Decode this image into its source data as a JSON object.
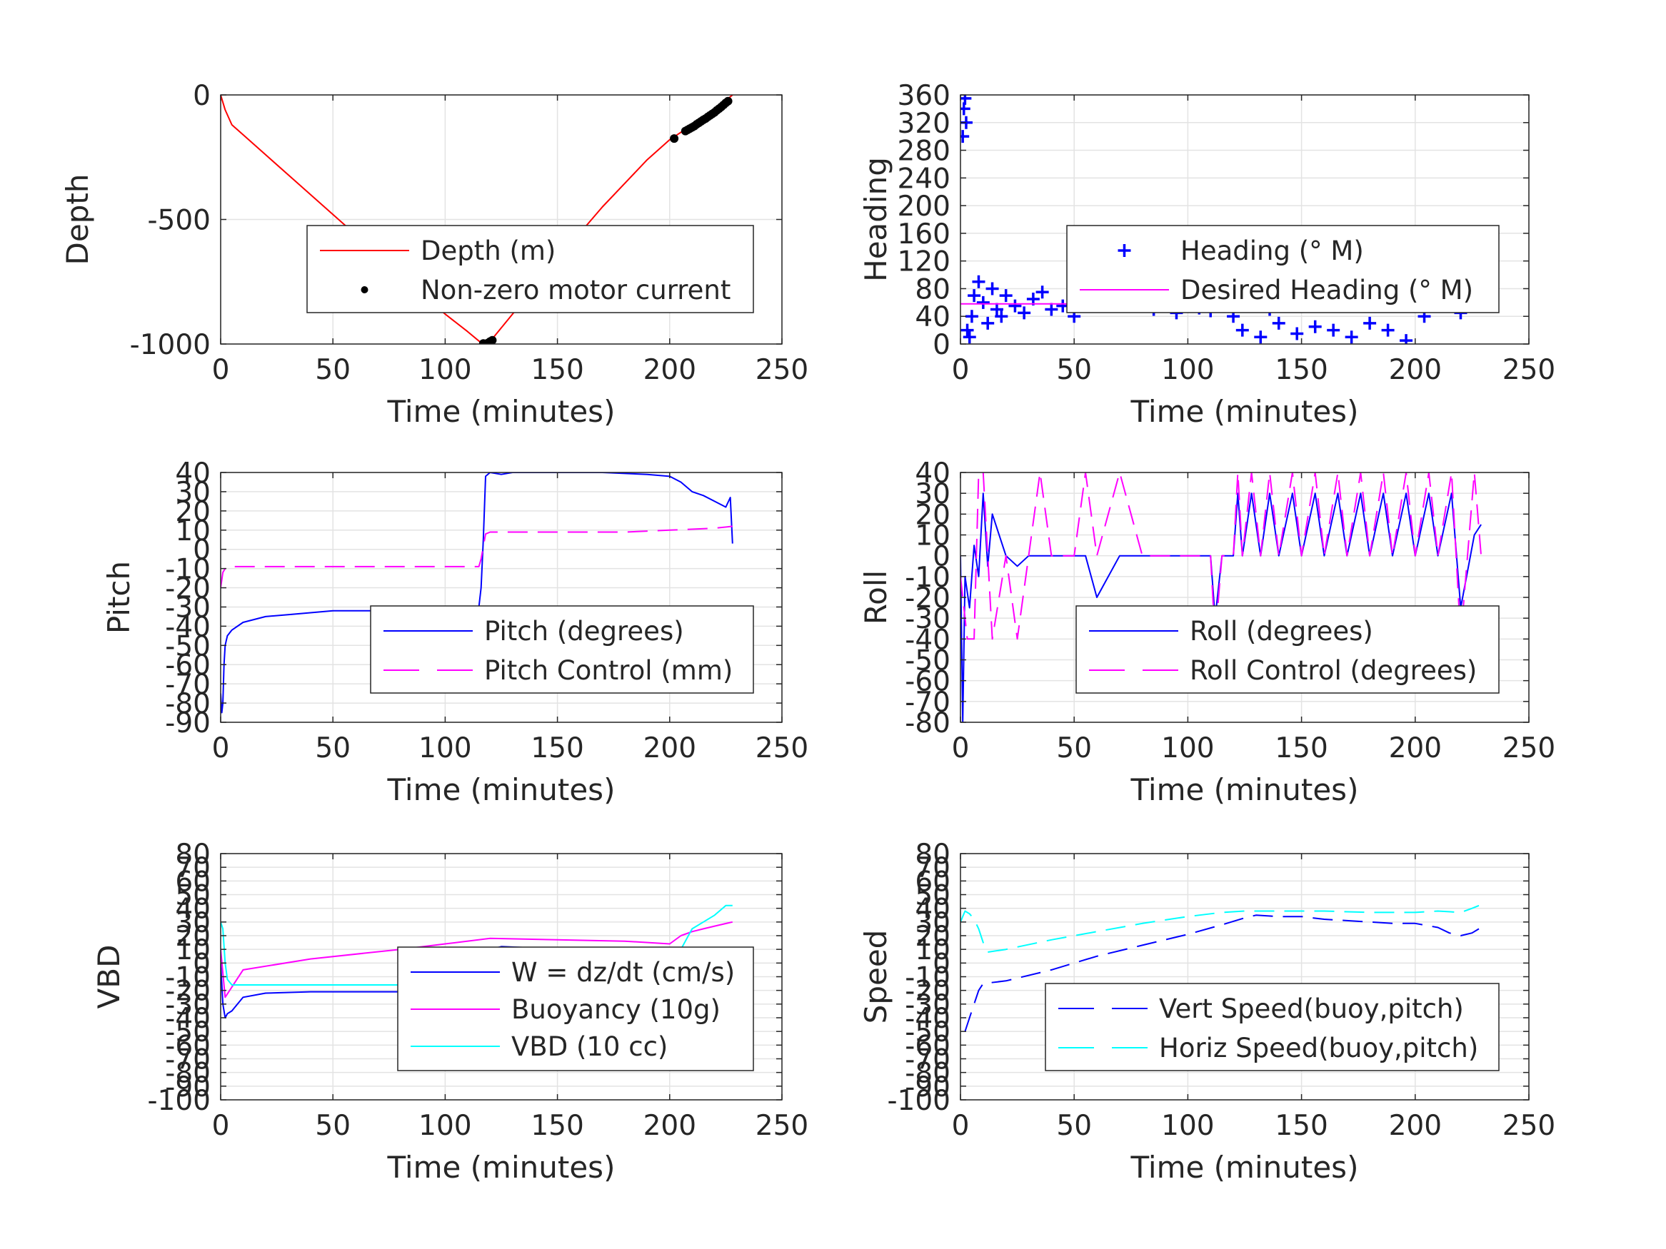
{
  "colors": {
    "depth": "#ff0000",
    "motor": "#000000",
    "blue": "#0000ff",
    "magenta": "#ff00ff",
    "cyan": "#00ffff",
    "grid": "#e3e3e3",
    "axis": "#262626"
  },
  "chart_data": [
    {
      "type": "line",
      "id": "depth",
      "ylabel": "Depth",
      "xlabel": "Time (minutes)",
      "xlim": [
        0,
        250
      ],
      "ylim": [
        -1000,
        0
      ],
      "xticks": [
        0,
        50,
        100,
        150,
        200,
        250
      ],
      "yticks": [
        -1000,
        -500,
        0
      ],
      "ytick_labels": [
        "-1000",
        "-500",
        "0"
      ],
      "grid": true,
      "legend_position": "center-right",
      "series": [
        {
          "name": "Depth (m)",
          "style": "solid",
          "color": "#ff0000",
          "x": [
            0,
            2,
            5,
            10,
            20,
            40,
            60,
            80,
            100,
            110,
            116,
            118,
            120,
            130,
            150,
            170,
            190,
            200,
            210,
            220,
            228
          ],
          "y": [
            0,
            -60,
            -120,
            -160,
            -240,
            -400,
            -560,
            -720,
            -880,
            -950,
            -995,
            -1000,
            -990,
            -880,
            -660,
            -450,
            -260,
            -180,
            -120,
            -60,
            0
          ]
        },
        {
          "name": "Non-zero motor current",
          "style": "points",
          "color": "#000000",
          "x": [
            117,
            118,
            119,
            120,
            121,
            202,
            207,
            208,
            209,
            210,
            211,
            212,
            213,
            214,
            215,
            216,
            217,
            218,
            219,
            220,
            221,
            222,
            223,
            224,
            225,
            226
          ],
          "y": [
            -998,
            -1000,
            -996,
            -990,
            -985,
            -175,
            -145,
            -140,
            -135,
            -130,
            -125,
            -118,
            -112,
            -106,
            -100,
            -95,
            -88,
            -82,
            -76,
            -70,
            -62,
            -55,
            -48,
            -40,
            -32,
            -25
          ]
        }
      ]
    },
    {
      "type": "scatter",
      "id": "heading",
      "ylabel": "Heading",
      "xlabel": "Time (minutes)",
      "xlim": [
        0,
        250
      ],
      "ylim": [
        0,
        360
      ],
      "xticks": [
        0,
        50,
        100,
        150,
        200,
        250
      ],
      "yticks": [
        0,
        40,
        80,
        120,
        160,
        200,
        240,
        280,
        320,
        360
      ],
      "ytick_labels": [
        "0",
        "40",
        "80",
        "120",
        "160",
        "200",
        "240",
        "280",
        "320",
        "360"
      ],
      "grid": true,
      "legend_position": "center-right",
      "series": [
        {
          "name": "Heading (° M)",
          "style": "plus",
          "color": "#0000ff",
          "x": [
            1,
            1.5,
            2,
            2.5,
            3,
            4,
            5,
            6,
            8,
            10,
            12,
            14,
            16,
            18,
            20,
            24,
            28,
            32,
            36,
            40,
            45,
            50,
            55,
            60,
            65,
            70,
            75,
            80,
            85,
            90,
            95,
            100,
            105,
            110,
            115,
            120,
            124,
            128,
            132,
            136,
            140,
            144,
            148,
            152,
            156,
            160,
            164,
            168,
            172,
            176,
            180,
            184,
            188,
            192,
            196,
            200,
            204,
            208,
            212,
            216,
            220,
            224,
            228
          ],
          "y": [
            300,
            340,
            355,
            320,
            20,
            10,
            40,
            70,
            90,
            60,
            30,
            80,
            50,
            40,
            70,
            55,
            45,
            65,
            75,
            50,
            55,
            40,
            60,
            70,
            55,
            75,
            60,
            68,
            50,
            60,
            45,
            58,
            52,
            48,
            55,
            40,
            20,
            70,
            10,
            50,
            30,
            80,
            15,
            60,
            25,
            75,
            20,
            55,
            10,
            65,
            30,
            80,
            20,
            60,
            5,
            90,
            40,
            110,
            70,
            100,
            45,
            80,
            60
          ]
        },
        {
          "name": "Desired Heading (° M)",
          "style": "solid",
          "color": "#ff00ff",
          "x": [
            0,
            50,
            55,
            60,
            90,
            95,
            110,
            120,
            230
          ],
          "y": [
            58,
            58,
            62,
            68,
            68,
            58,
            58,
            55,
            55
          ]
        }
      ]
    },
    {
      "type": "line",
      "id": "pitch",
      "ylabel": "Pitch",
      "xlabel": "Time (minutes)",
      "xlim": [
        0,
        250
      ],
      "ylim": [
        -90,
        40
      ],
      "xticks": [
        0,
        50,
        100,
        150,
        200,
        250
      ],
      "yticks": [
        -90,
        -80,
        -70,
        -60,
        -50,
        -40,
        -30,
        -20,
        -10,
        0,
        10,
        20,
        30,
        40
      ],
      "ytick_labels": [
        "-90",
        "-80",
        "-70",
        "-60",
        "-50",
        "-40",
        "-30",
        "-20",
        "-10",
        "0",
        "10",
        "20",
        "30",
        "40"
      ],
      "grid": true,
      "legend_position": "lower-right",
      "series": [
        {
          "name": "Pitch (degrees)",
          "style": "solid",
          "color": "#0000ff",
          "x": [
            0,
            0.5,
            1,
            1.5,
            2,
            3,
            5,
            10,
            20,
            30,
            50,
            70,
            90,
            110,
            115,
            116,
            117,
            118,
            120,
            125,
            130,
            150,
            170,
            190,
            200,
            205,
            210,
            215,
            220,
            225,
            227,
            228
          ],
          "y": [
            -75,
            -85,
            -80,
            -60,
            -50,
            -45,
            -42,
            -38,
            -35,
            -34,
            -32,
            -32,
            -31,
            -30,
            -30,
            -20,
            5,
            38,
            40,
            39,
            40,
            40,
            40,
            39,
            38,
            35,
            30,
            28,
            25,
            22,
            27,
            3
          ]
        },
        {
          "name": "Pitch Control (mm)",
          "style": "dashed",
          "color": "#ff00ff",
          "x": [
            0,
            1,
            2,
            3,
            5,
            50,
            100,
            115,
            116,
            118,
            120,
            150,
            180,
            200,
            220,
            228
          ],
          "y": [
            -20,
            -12,
            -10,
            -10,
            -9,
            -9,
            -9,
            -9,
            -5,
            8,
            9,
            9,
            9,
            10,
            11,
            12
          ]
        }
      ]
    },
    {
      "type": "line",
      "id": "roll",
      "ylabel": "Roll",
      "xlabel": "Time (minutes)",
      "xlim": [
        0,
        250
      ],
      "ylim": [
        -80,
        40
      ],
      "xticks": [
        0,
        50,
        100,
        150,
        200,
        250
      ],
      "yticks": [
        -80,
        -70,
        -60,
        -50,
        -40,
        -30,
        -20,
        -10,
        0,
        10,
        20,
        30,
        40
      ],
      "ytick_labels": [
        "-80",
        "-70",
        "-60",
        "-50",
        "-40",
        "-30",
        "-20",
        "-10",
        "0",
        "10",
        "20",
        "30",
        "40"
      ],
      "grid": true,
      "legend_position": "lower-right",
      "series": [
        {
          "name": "Roll (degrees)",
          "style": "solid",
          "color": "#0000ff",
          "x": [
            0,
            1,
            2,
            4,
            6,
            8,
            10,
            12,
            14,
            20,
            25,
            30,
            35,
            40,
            50,
            55,
            60,
            70,
            80,
            90,
            100,
            110,
            112,
            115,
            120,
            122,
            124,
            128,
            132,
            136,
            140,
            146,
            150,
            156,
            160,
            166,
            170,
            176,
            180,
            186,
            190,
            196,
            200,
            206,
            210,
            216,
            220,
            226,
            229
          ],
          "y": [
            0,
            -80,
            -10,
            -25,
            5,
            -10,
            30,
            -5,
            20,
            0,
            -5,
            0,
            0,
            0,
            0,
            0,
            -20,
            0,
            0,
            0,
            0,
            0,
            -30,
            0,
            0,
            30,
            0,
            30,
            0,
            30,
            0,
            30,
            0,
            30,
            0,
            30,
            0,
            30,
            0,
            30,
            0,
            30,
            0,
            30,
            0,
            30,
            -25,
            10,
            15
          ]
        },
        {
          "name": "Roll Control (degrees)",
          "style": "dashed",
          "color": "#ff00ff",
          "x": [
            0,
            3,
            6,
            8,
            10,
            12,
            14,
            20,
            25,
            30,
            35,
            40,
            50,
            55,
            60,
            70,
            80,
            90,
            100,
            110,
            112,
            115,
            120,
            122,
            124,
            128,
            132,
            136,
            140,
            146,
            150,
            156,
            160,
            166,
            170,
            176,
            180,
            186,
            190,
            196,
            200,
            206,
            210,
            216,
            220,
            226,
            229
          ],
          "y": [
            -10,
            -40,
            -40,
            40,
            40,
            0,
            -40,
            0,
            -40,
            0,
            40,
            0,
            0,
            40,
            0,
            40,
            0,
            0,
            0,
            0,
            -40,
            0,
            0,
            40,
            0,
            40,
            0,
            40,
            0,
            40,
            0,
            40,
            0,
            40,
            0,
            40,
            0,
            40,
            0,
            40,
            0,
            40,
            0,
            40,
            -40,
            40,
            0
          ]
        }
      ]
    },
    {
      "type": "line",
      "id": "vbd",
      "ylabel": "VBD",
      "xlabel": "Time (minutes)",
      "xlim": [
        0,
        250
      ],
      "ylim": [
        -100,
        80
      ],
      "xticks": [
        0,
        50,
        100,
        150,
        200,
        250
      ],
      "yticks": [
        -100,
        -90,
        -80,
        -70,
        -60,
        -50,
        -40,
        -30,
        -20,
        -10,
        0,
        10,
        20,
        30,
        40,
        50,
        60,
        70,
        80
      ],
      "ytick_labels": [
        "-100",
        "-90",
        "-80",
        "-70",
        "-60",
        "-50",
        "-40",
        "-30",
        "-20",
        "-10",
        "0",
        "10",
        "20",
        "30",
        "40",
        "50",
        "60",
        "70",
        "80"
      ],
      "grid": true,
      "legend_position": "center-right",
      "series": [
        {
          "name": "W = dz/dt (cm/s)",
          "style": "solid",
          "color": "#0000ff",
          "x": [
            0,
            1,
            2,
            3,
            5,
            10,
            20,
            40,
            60,
            80,
            100,
            110,
            116,
            118,
            120,
            125,
            140,
            160,
            180,
            200,
            210,
            215,
            220,
            225,
            228
          ],
          "y": [
            0,
            -30,
            -40,
            -37,
            -35,
            -25,
            -22,
            -21,
            -21,
            -21,
            -20,
            -19,
            -18,
            0,
            10,
            12,
            11,
            11,
            10,
            8,
            7,
            5,
            8,
            7,
            6
          ]
        },
        {
          "name": "Buoyancy (10g)",
          "style": "solid",
          "color": "#ff00ff",
          "x": [
            0,
            2,
            4,
            6,
            10,
            40,
            80,
            100,
            120,
            150,
            180,
            200,
            205,
            210,
            215,
            220,
            228
          ],
          "y": [
            10,
            -25,
            -20,
            -15,
            -5,
            3,
            10,
            14,
            18,
            17,
            16,
            14,
            20,
            23,
            25,
            27,
            30
          ]
        },
        {
          "name": "VBD (10 cc)",
          "style": "solid",
          "color": "#00ffff",
          "x": [
            0,
            1,
            2,
            3,
            5,
            20,
            60,
            100,
            115,
            118,
            120,
            150,
            180,
            200,
            205,
            210,
            215,
            220,
            225,
            228
          ],
          "y": [
            30,
            25,
            0,
            -12,
            -16,
            -16,
            -16,
            -16,
            -16,
            8,
            8,
            8,
            8,
            8,
            10,
            25,
            30,
            35,
            42,
            42
          ]
        }
      ]
    },
    {
      "type": "line",
      "id": "speed",
      "ylabel": "Speed",
      "xlabel": "Time (minutes)",
      "xlim": [
        0,
        250
      ],
      "ylim": [
        -100,
        80
      ],
      "xticks": [
        0,
        50,
        100,
        150,
        200,
        250
      ],
      "yticks": [
        -100,
        -90,
        -80,
        -70,
        -60,
        -50,
        -40,
        -30,
        -20,
        -10,
        0,
        10,
        20,
        30,
        40,
        50,
        60,
        70,
        80
      ],
      "ytick_labels": [
        "-100",
        "-90",
        "-80",
        "-70",
        "-60",
        "-50",
        "-40",
        "-30",
        "-20",
        "-10",
        "0",
        "10",
        "20",
        "30",
        "40",
        "50",
        "60",
        "70",
        "80"
      ],
      "grid": true,
      "legend_position": "lower-right",
      "series": [
        {
          "name": "Vert Speed(buoy,pitch)",
          "style": "dashed",
          "color": "#0000ff",
          "x": [
            2,
            4,
            6,
            8,
            10,
            20,
            40,
            60,
            80,
            100,
            115,
            125,
            130,
            140,
            150,
            160,
            170,
            180,
            190,
            200,
            210,
            215,
            220,
            225,
            228
          ],
          "y": [
            -50,
            -40,
            -30,
            -20,
            -15,
            -13,
            -5,
            5,
            13,
            21,
            28,
            33,
            35,
            34,
            34,
            32,
            31,
            30,
            29,
            29,
            26,
            22,
            20,
            22,
            25
          ]
        },
        {
          "name": "Horiz Speed(buoy,pitch)",
          "style": "dashed",
          "color": "#00ffff",
          "x": [
            0,
            2,
            4,
            6,
            8,
            10,
            12,
            20,
            40,
            60,
            80,
            100,
            115,
            125,
            140,
            160,
            180,
            200,
            210,
            220,
            225,
            228
          ],
          "y": [
            30,
            38,
            36,
            32,
            25,
            15,
            8,
            10,
            17,
            23,
            29,
            34,
            37,
            38,
            38,
            38,
            37,
            37,
            38,
            37,
            40,
            42
          ]
        }
      ]
    }
  ]
}
